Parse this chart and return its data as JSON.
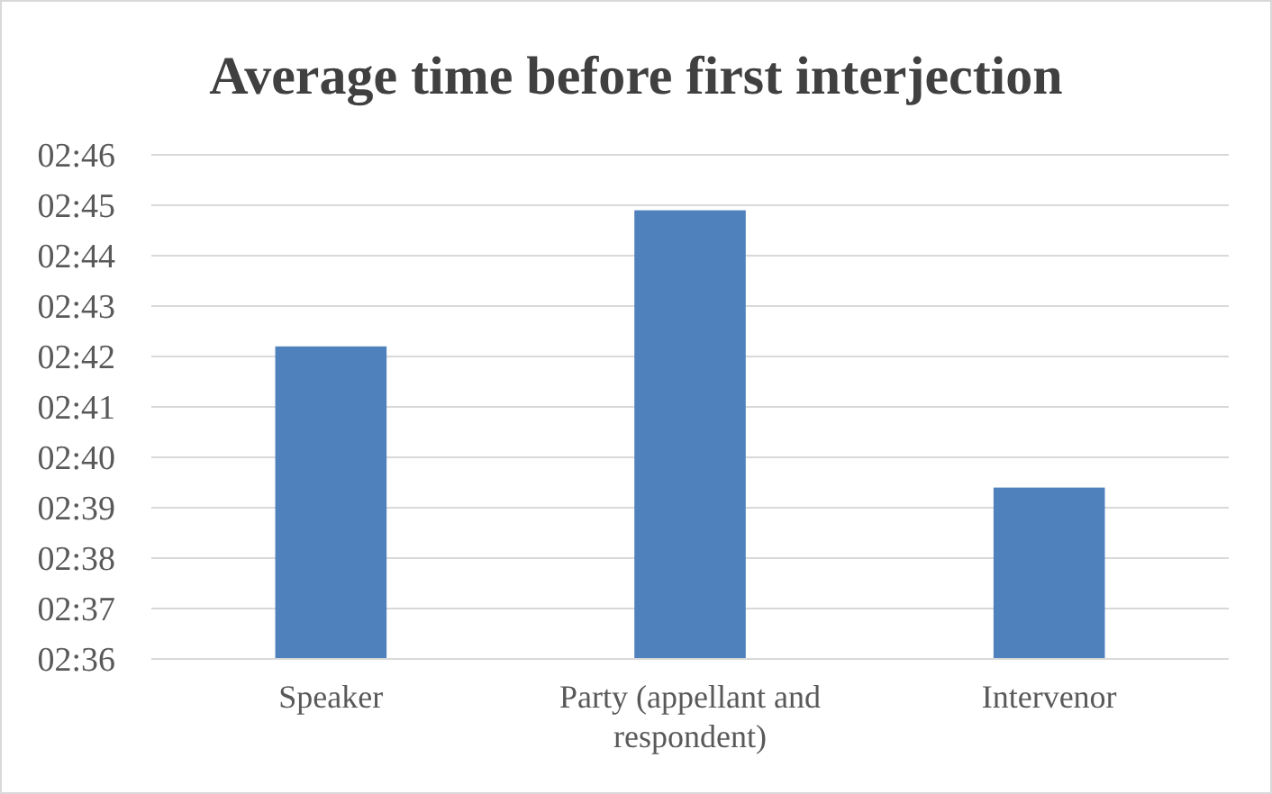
{
  "chart_data": {
    "type": "bar",
    "title": "Average time before first interjection",
    "categories": [
      "Speaker",
      "Party (appellant and respondent)",
      "Intervenor"
    ],
    "values": [
      162.2,
      164.9,
      159.4
    ],
    "color": "#4f81bd",
    "ylim": [
      156,
      166
    ],
    "yticks": [
      {
        "value": 156,
        "label": "02:36"
      },
      {
        "value": 157,
        "label": "02:37"
      },
      {
        "value": 158,
        "label": "02:38"
      },
      {
        "value": 159,
        "label": "02:39"
      },
      {
        "value": 160,
        "label": "02:40"
      },
      {
        "value": 161,
        "label": "02:41"
      },
      {
        "value": 162,
        "label": "02:42"
      },
      {
        "value": 163,
        "label": "02:43"
      },
      {
        "value": 164,
        "label": "02:44"
      },
      {
        "value": 165,
        "label": "02:45"
      },
      {
        "value": 166,
        "label": "02:46"
      }
    ],
    "grid": true
  }
}
